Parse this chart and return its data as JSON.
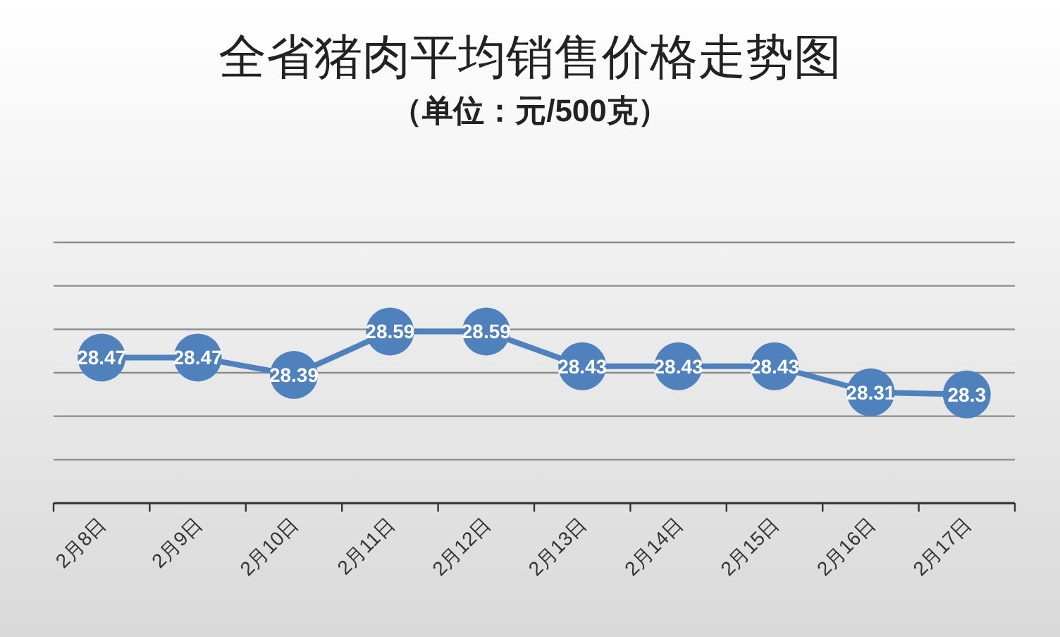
{
  "chart_data": {
    "type": "line",
    "title": "全省猪肉平均销售价格走势图",
    "subtitle": "（单位：元/500克）",
    "categories": [
      "2月8日",
      "2月9日",
      "2月10日",
      "2月11日",
      "2月12日",
      "2月13日",
      "2月14日",
      "2月15日",
      "2月16日",
      "2月17日"
    ],
    "series": [
      {
        "color": "#4f81bd",
        "values": [
          28.47,
          28.47,
          28.39,
          28.59,
          28.59,
          28.43,
          28.43,
          28.43,
          28.31,
          28.3
        ]
      }
    ],
    "ylim": [
      27.8,
      29.0
    ],
    "yticks": [
      {
        "value": 27.8,
        "label": null
      },
      {
        "value": 28.0,
        "label": null
      },
      {
        "value": 28.2,
        "label": null
      },
      {
        "value": 28.4,
        "label": null
      },
      {
        "value": 28.6,
        "label": null
      },
      {
        "value": 28.8,
        "label": null
      },
      {
        "value": 29.0,
        "label": null
      }
    ],
    "tick_labels": "x",
    "grid": "y",
    "marker": "circle",
    "line_style": "solid",
    "data_labels": true
  }
}
